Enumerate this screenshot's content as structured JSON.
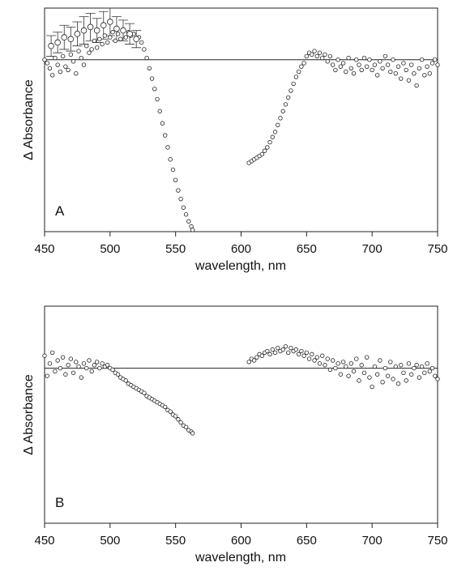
{
  "chart_data": [
    {
      "type": "scatter",
      "panel_label": "A",
      "xlabel": "wavelength, nm",
      "ylabel": "Δ Absorbance",
      "xlim": [
        450,
        750
      ],
      "ylim": [
        -1.0,
        0.3
      ],
      "xticks": [
        450,
        500,
        550,
        600,
        650,
        700,
        750
      ],
      "reference_line_y": 0,
      "series": [
        {
          "x": [
            450,
            452,
            454,
            456,
            458,
            460,
            462,
            464,
            466,
            468,
            470,
            472,
            474,
            476,
            478,
            480,
            482,
            484,
            486,
            488,
            490,
            492,
            494,
            496,
            498,
            500,
            502,
            504,
            506,
            508,
            510,
            512,
            514,
            516,
            518,
            520,
            522,
            524,
            526,
            528,
            530,
            532,
            534,
            536,
            538,
            540,
            542,
            544,
            546,
            548,
            550,
            552,
            554,
            556,
            558,
            560,
            562,
            563,
            606,
            608,
            610,
            612,
            614,
            616,
            618,
            620,
            622,
            624,
            626,
            628,
            630,
            632,
            634,
            636,
            638,
            640,
            642,
            644,
            646,
            648,
            650,
            652,
            654,
            656,
            658,
            660,
            662,
            664,
            666,
            668,
            670,
            672,
            674,
            676,
            678,
            680,
            682,
            684,
            686,
            688,
            690,
            692,
            694,
            696,
            698,
            700,
            702,
            704,
            706,
            708,
            710,
            712,
            714,
            716,
            718,
            720,
            722,
            724,
            726,
            728,
            730,
            732,
            734,
            736,
            738,
            740,
            742,
            744,
            746,
            748,
            750
          ],
          "y": [
            0.0,
            -0.02,
            -0.05,
            -0.09,
            0.01,
            -0.03,
            -0.07,
            0.02,
            -0.04,
            -0.06,
            0.03,
            -0.01,
            -0.08,
            0.05,
            0.01,
            -0.03,
            0.08,
            0.04,
            0.06,
            0.11,
            0.07,
            0.12,
            0.09,
            0.14,
            0.1,
            0.13,
            0.16,
            0.11,
            0.15,
            0.12,
            0.17,
            0.13,
            0.16,
            0.14,
            0.15,
            0.12,
            0.13,
            0.1,
            0.06,
            0.01,
            -0.05,
            -0.11,
            -0.17,
            -0.23,
            -0.3,
            -0.37,
            -0.44,
            -0.51,
            -0.58,
            -0.64,
            -0.7,
            -0.76,
            -0.81,
            -0.86,
            -0.9,
            -0.94,
            -0.97,
            -0.99,
            -0.6,
            -0.59,
            -0.58,
            -0.57,
            -0.56,
            -0.55,
            -0.53,
            -0.51,
            -0.48,
            -0.45,
            -0.42,
            -0.38,
            -0.34,
            -0.3,
            -0.26,
            -0.22,
            -0.18,
            -0.14,
            -0.1,
            -0.07,
            -0.04,
            -0.02,
            0.02,
            0.04,
            0.03,
            0.05,
            0.02,
            0.04,
            0.01,
            0.03,
            -0.01,
            0.02,
            -0.03,
            -0.06,
            0.0,
            -0.04,
            -0.02,
            -0.07,
            0.01,
            -0.05,
            -0.08,
            0.0,
            -0.03,
            -0.06,
            0.01,
            -0.04,
            0.0,
            -0.06,
            -0.03,
            -0.09,
            -0.01,
            -0.05,
            0.02,
            -0.03,
            -0.07,
            0.0,
            -0.08,
            -0.04,
            -0.11,
            -0.02,
            -0.06,
            -0.12,
            -0.03,
            -0.08,
            -0.15,
            -0.05,
            0.0,
            -0.09,
            -0.04,
            -0.08,
            -0.02,
            0.0,
            -0.03
          ]
        },
        {
          "name": "",
          "error_bars": true,
          "x": [
            455,
            460,
            465,
            470,
            475,
            480,
            485,
            490,
            495,
            500,
            505,
            510,
            515,
            520
          ],
          "y": [
            0.08,
            0.1,
            0.13,
            0.12,
            0.15,
            0.17,
            0.19,
            0.17,
            0.2,
            0.22,
            0.18,
            0.17,
            0.15,
            0.12
          ],
          "yerr": [
            0.06,
            0.06,
            0.07,
            0.07,
            0.07,
            0.08,
            0.08,
            0.07,
            0.08,
            0.08,
            0.07,
            0.06,
            0.06,
            0.05
          ]
        }
      ]
    },
    {
      "type": "scatter",
      "panel_label": "B",
      "xlabel": "wavelength, nm",
      "ylabel": "Δ Absorbance",
      "xlim": [
        450,
        750
      ],
      "ylim": [
        -1.0,
        0.4
      ],
      "xticks": [
        450,
        500,
        550,
        600,
        650,
        700,
        750
      ],
      "reference_line_y": 0,
      "series": [
        {
          "x": [
            450,
            452,
            454,
            456,
            458,
            460,
            462,
            464,
            466,
            468,
            470,
            472,
            474,
            476,
            478,
            480,
            482,
            484,
            486,
            488,
            490,
            492,
            494,
            496,
            498,
            500,
            502,
            504,
            506,
            508,
            510,
            512,
            514,
            516,
            518,
            520,
            522,
            524,
            526,
            528,
            530,
            532,
            534,
            536,
            538,
            540,
            542,
            544,
            546,
            548,
            550,
            552,
            554,
            556,
            558,
            560,
            562,
            563,
            606,
            608,
            610,
            612,
            614,
            616,
            618,
            620,
            622,
            624,
            626,
            628,
            630,
            632,
            634,
            636,
            638,
            640,
            642,
            644,
            646,
            648,
            650,
            652,
            654,
            656,
            658,
            660,
            662,
            664,
            666,
            668,
            670,
            672,
            674,
            676,
            678,
            680,
            682,
            684,
            686,
            688,
            690,
            692,
            694,
            696,
            698,
            700,
            702,
            704,
            706,
            708,
            710,
            712,
            714,
            716,
            718,
            720,
            722,
            724,
            726,
            728,
            730,
            732,
            734,
            736,
            738,
            740,
            742,
            744,
            746,
            748,
            750
          ],
          "y": [
            0.08,
            -0.05,
            0.03,
            0.1,
            -0.02,
            0.05,
            0.0,
            0.07,
            -0.04,
            0.02,
            0.06,
            -0.03,
            0.04,
            0.01,
            -0.06,
            0.03,
            0.0,
            0.05,
            -0.02,
            0.02,
            0.04,
            0.0,
            0.03,
            0.01,
            0.02,
            0.0,
            -0.01,
            -0.03,
            -0.04,
            -0.06,
            -0.07,
            -0.08,
            -0.1,
            -0.11,
            -0.12,
            -0.13,
            -0.14,
            -0.15,
            -0.16,
            -0.18,
            -0.19,
            -0.2,
            -0.21,
            -0.22,
            -0.23,
            -0.24,
            -0.25,
            -0.27,
            -0.28,
            -0.3,
            -0.31,
            -0.33,
            -0.35,
            -0.37,
            -0.38,
            -0.4,
            -0.41,
            -0.42,
            0.04,
            0.06,
            0.05,
            0.07,
            0.09,
            0.08,
            0.1,
            0.11,
            0.09,
            0.12,
            0.1,
            0.13,
            0.11,
            0.12,
            0.14,
            0.1,
            0.13,
            0.11,
            0.12,
            0.09,
            0.11,
            0.08,
            0.1,
            0.06,
            0.09,
            0.05,
            0.07,
            0.03,
            0.08,
            0.02,
            0.06,
            -0.01,
            0.05,
            0.0,
            0.03,
            -0.04,
            0.04,
            0.01,
            -0.05,
            0.03,
            -0.02,
            0.06,
            -0.08,
            0.02,
            -0.03,
            0.07,
            -0.06,
            -0.12,
            0.01,
            -0.04,
            0.05,
            -0.09,
            0.0,
            -0.05,
            0.04,
            -0.07,
            0.01,
            -0.1,
            0.02,
            -0.03,
            -0.08,
            0.03,
            -0.04,
            0.0,
            0.02,
            -0.06,
            0.01,
            -0.03,
            0.03,
            -0.02,
            0.0,
            -0.05,
            -0.07
          ]
        }
      ]
    }
  ]
}
